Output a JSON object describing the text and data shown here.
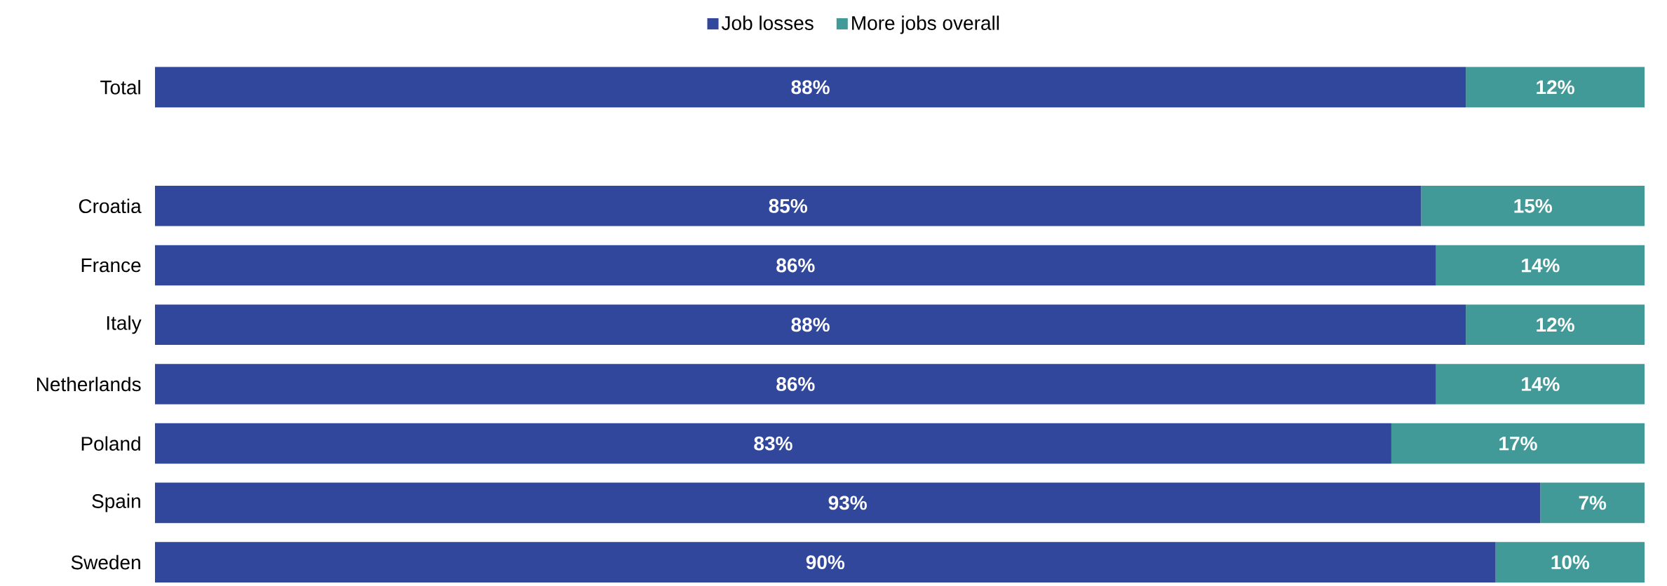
{
  "chart_data": {
    "type": "bar",
    "orientation": "horizontal",
    "stacked": true,
    "categories": [
      "Total",
      null,
      "Croatia",
      "France",
      "Italy",
      "Netherlands",
      "Poland",
      "Spain",
      "Sweden"
    ],
    "series": [
      {
        "name": "Job losses",
        "color": "#30479c",
        "values": [
          88,
          null,
          85,
          86,
          88,
          86,
          83,
          93,
          90
        ],
        "value_labels": [
          "88%",
          null,
          "85%",
          "86%",
          "88%",
          "86%",
          "83%",
          "93%",
          "90%"
        ]
      },
      {
        "name": "More jobs overall",
        "color": "#429a98",
        "values": [
          12,
          null,
          15,
          14,
          12,
          14,
          17,
          7,
          10
        ],
        "value_labels": [
          "12%",
          null,
          "15%",
          "14%",
          "12%",
          "14%",
          "17%",
          "7%",
          "10%"
        ]
      }
    ],
    "xlim": [
      0,
      100
    ],
    "tick_labels": "y",
    "legend": "top"
  }
}
